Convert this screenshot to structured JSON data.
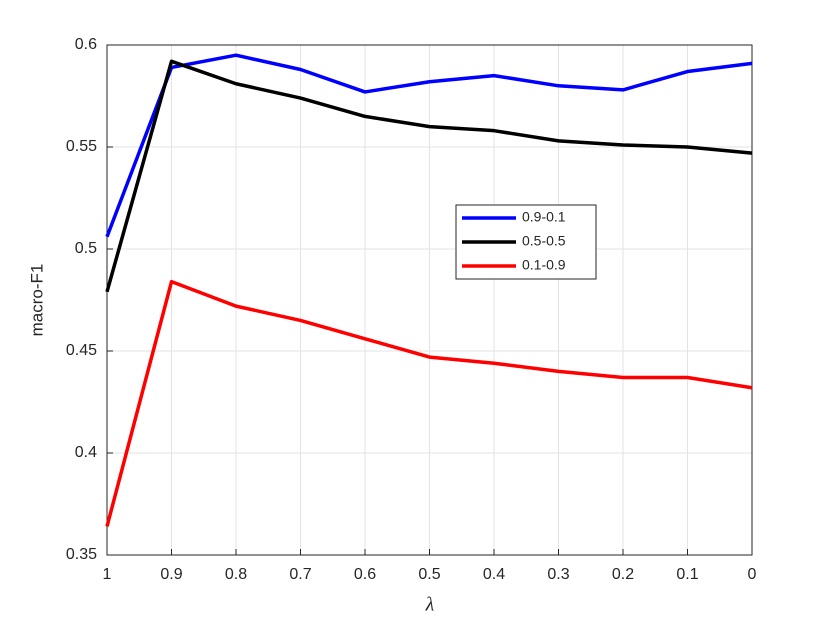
{
  "chart_data": {
    "type": "line",
    "x_label": "λ",
    "y_label": "macro-F1",
    "x": [
      1,
      0.9,
      0.8,
      0.7,
      0.6,
      0.5,
      0.4,
      0.3,
      0.2,
      0.1,
      0
    ],
    "series": [
      {
        "name": "0.9-0.1",
        "color": "#0000ff",
        "values": [
          0.506,
          0.589,
          0.595,
          0.588,
          0.577,
          0.582,
          0.585,
          0.58,
          0.578,
          0.587,
          0.591
        ]
      },
      {
        "name": "0.5-0.5",
        "color": "#000000",
        "values": [
          0.479,
          0.592,
          0.581,
          0.574,
          0.565,
          0.56,
          0.558,
          0.553,
          0.551,
          0.55,
          0.547
        ]
      },
      {
        "name": "0.1-0.9",
        "color": "#ff0000",
        "values": [
          0.364,
          0.484,
          0.472,
          0.465,
          0.456,
          0.447,
          0.444,
          0.44,
          0.437,
          0.437,
          0.432
        ]
      }
    ],
    "xlim": [
      1,
      0
    ],
    "xticks": [
      1,
      0.9,
      0.8,
      0.7,
      0.6,
      0.5,
      0.4,
      0.3,
      0.2,
      0.1,
      0
    ],
    "ylim": [
      0.35,
      0.6
    ],
    "yticks": [
      0.35,
      0.4,
      0.45,
      0.5,
      0.55,
      0.6
    ],
    "grid": true,
    "legend_position": "center"
  }
}
